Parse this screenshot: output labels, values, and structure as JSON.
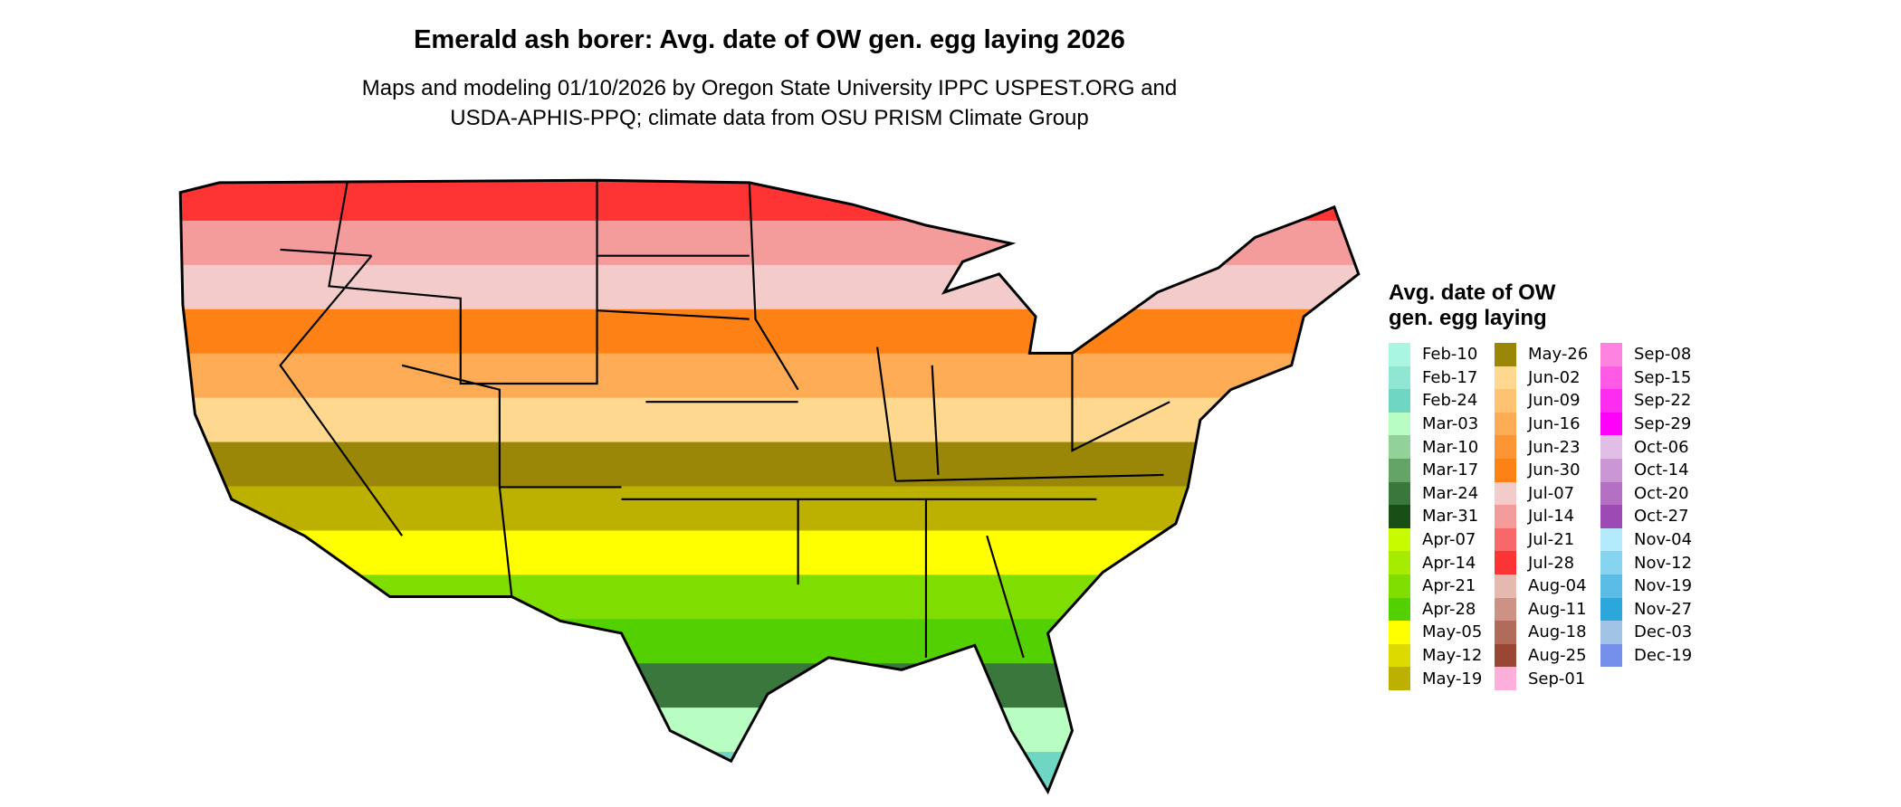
{
  "chart_data": {
    "type": "heatmap",
    "title": "Emerald ash borer: Avg. date of OW gen. egg laying 2026",
    "subtitle_lines": [
      "Maps and modeling 01/10/2026 by Oregon State University IPPC USPEST.ORG and",
      "USDA-APHIS-PPQ; climate data from OSU PRISM Climate Group"
    ],
    "legend": {
      "title_lines": [
        "Avg. date of OW",
        "gen. egg laying"
      ],
      "placement": "right",
      "columns": [
        [
          {
            "label": "Feb-10",
            "color": "#AAF7E1"
          },
          {
            "label": "Feb-17",
            "color": "#8FE6D2"
          },
          {
            "label": "Feb-24",
            "color": "#70D6C4"
          },
          {
            "label": "Mar-03",
            "color": "#B8FDC1"
          },
          {
            "label": "Mar-10",
            "color": "#92D298"
          },
          {
            "label": "Mar-17",
            "color": "#64A467"
          },
          {
            "label": "Mar-24",
            "color": "#3A773C"
          },
          {
            "label": "Mar-31",
            "color": "#174F16"
          },
          {
            "label": "Apr-07",
            "color": "#C9FB00"
          },
          {
            "label": "Apr-14",
            "color": "#A6EC00"
          },
          {
            "label": "Apr-21",
            "color": "#80DD00"
          },
          {
            "label": "Apr-28",
            "color": "#52D000"
          },
          {
            "label": "May-05",
            "color": "#FFFF00"
          },
          {
            "label": "May-12",
            "color": "#DDDA00"
          },
          {
            "label": "May-19",
            "color": "#BCB000"
          }
        ],
        [
          {
            "label": "May-26",
            "color": "#9A8708"
          },
          {
            "label": "Jun-02",
            "color": "#FED88E"
          },
          {
            "label": "Jun-09",
            "color": "#FEC273"
          },
          {
            "label": "Jun-16",
            "color": "#FDAB55"
          },
          {
            "label": "Jun-23",
            "color": "#FD9535"
          },
          {
            "label": "Jun-30",
            "color": "#FE8115"
          },
          {
            "label": "Jul-07",
            "color": "#F4CBCB"
          },
          {
            "label": "Jul-14",
            "color": "#F49B9B"
          },
          {
            "label": "Jul-21",
            "color": "#F76868"
          },
          {
            "label": "Jul-28",
            "color": "#FE3434"
          },
          {
            "label": "Aug-04",
            "color": "#E6B8B0"
          },
          {
            "label": "Aug-11",
            "color": "#CB9285"
          },
          {
            "label": "Aug-18",
            "color": "#B26A5B"
          },
          {
            "label": "Aug-25",
            "color": "#9A4634"
          },
          {
            "label": "Sep-01",
            "color": "#FEAEDA"
          }
        ],
        [
          {
            "label": "Sep-08",
            "color": "#FE82DF"
          },
          {
            "label": "Sep-15",
            "color": "#FE5AE6"
          },
          {
            "label": "Sep-22",
            "color": "#FE2CEE"
          },
          {
            "label": "Sep-29",
            "color": "#FE00FA"
          },
          {
            "label": "Oct-06",
            "color": "#E0BEE6"
          },
          {
            "label": "Oct-14",
            "color": "#CA96D4"
          },
          {
            "label": "Oct-20",
            "color": "#B46FC3"
          },
          {
            "label": "Oct-27",
            "color": "#9E4AB4"
          },
          {
            "label": "Nov-04",
            "color": "#B3EBFD"
          },
          {
            "label": "Nov-12",
            "color": "#87D4F0"
          },
          {
            "label": "Nov-19",
            "color": "#5BBDE5"
          },
          {
            "label": "Nov-27",
            "color": "#2CA7DB"
          },
          {
            "label": "Dec-03",
            "color": "#A0C3E6"
          },
          {
            "label": "Dec-19",
            "color": "#7590EA"
          }
        ]
      ]
    },
    "map_bands_north_to_south": [
      "Jul-28",
      "Jul-14",
      "Jul-07",
      "Jun-30",
      "Jun-16",
      "Jun-02",
      "May-26",
      "May-19",
      "May-05",
      "Apr-21",
      "Apr-28",
      "Mar-24",
      "Mar-03",
      "Feb-24"
    ]
  }
}
